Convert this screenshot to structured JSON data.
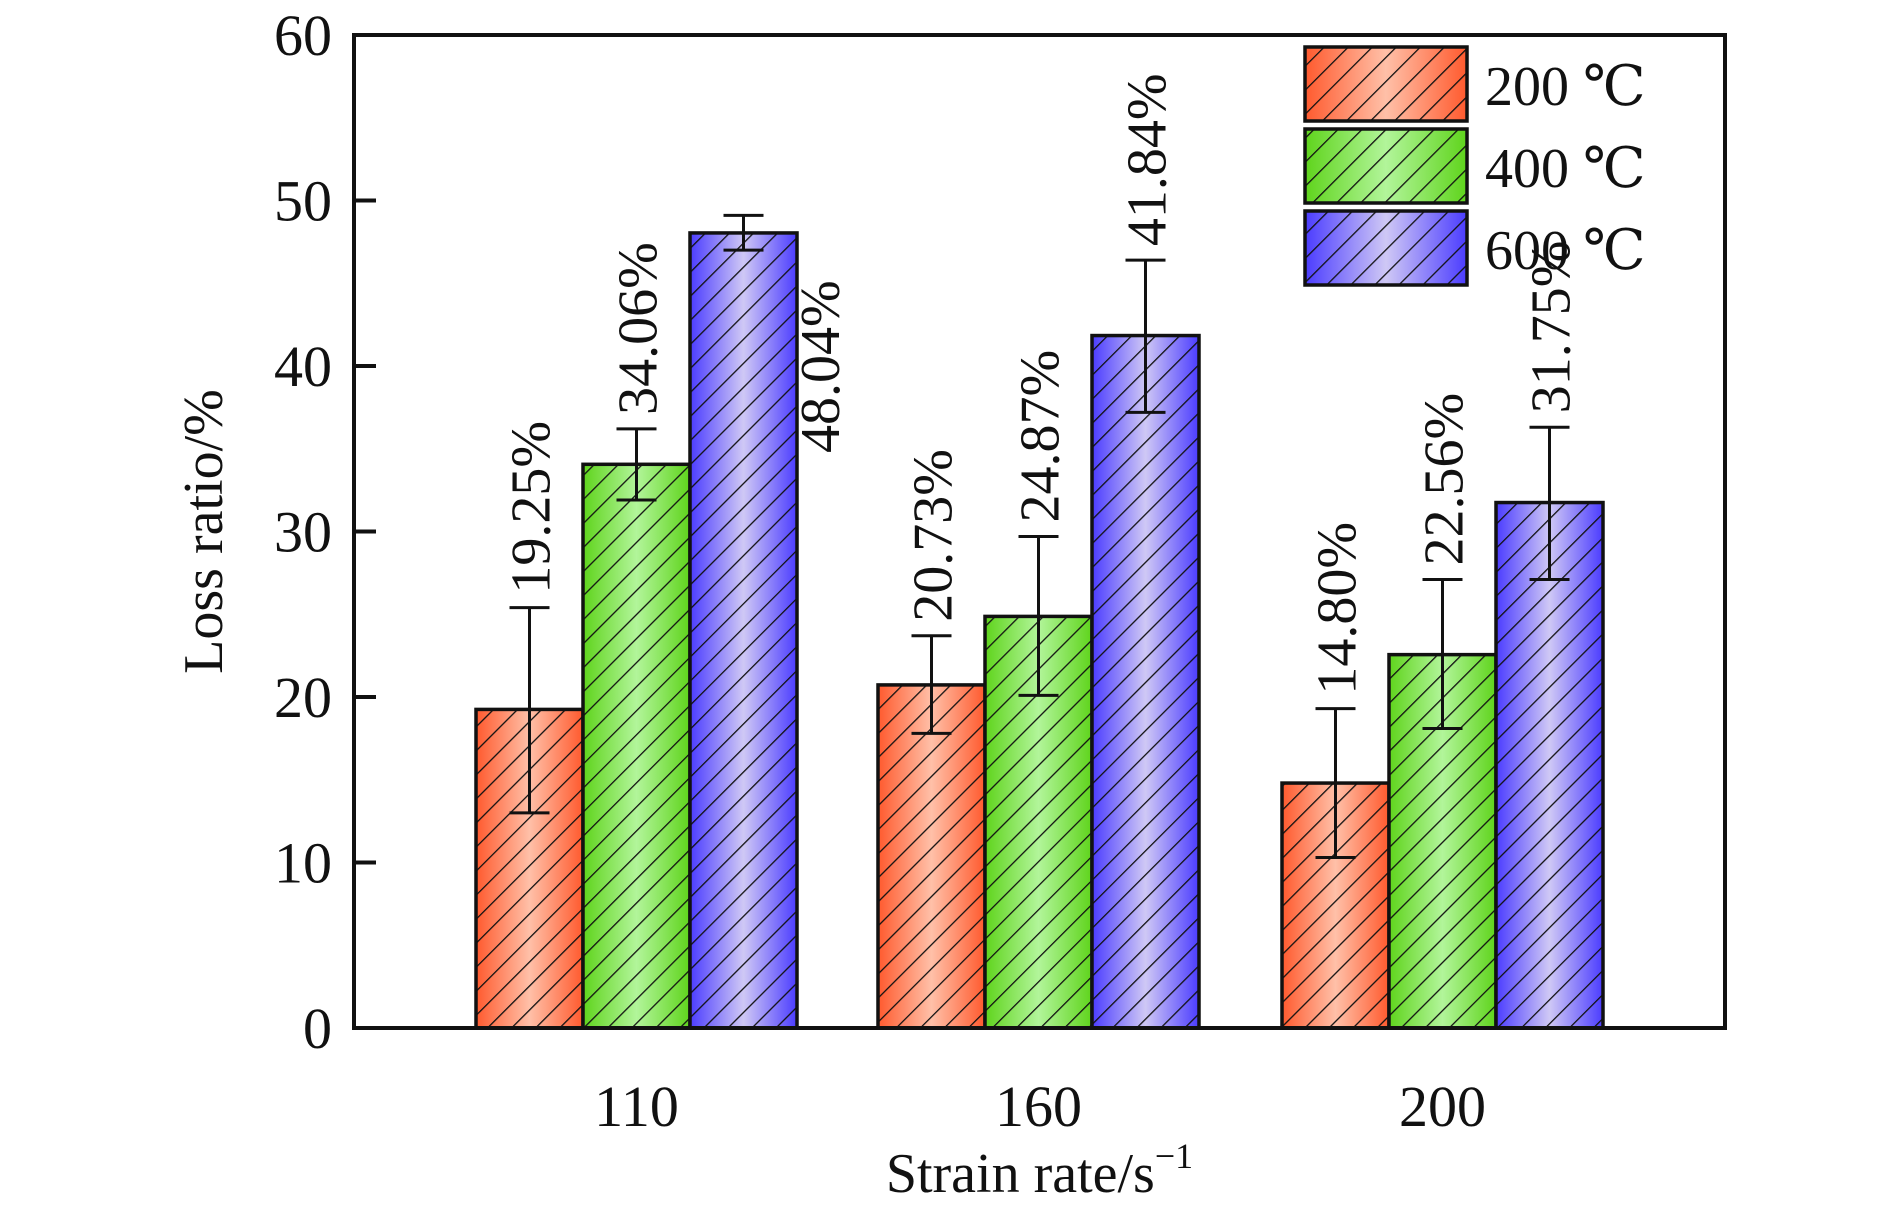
{
  "chart_data": {
    "type": "bar",
    "title": "",
    "xlabel": "Strain rate/s",
    "xlabel_superscript": "−1",
    "ylabel": "Loss ratio/%",
    "ylim": [
      0,
      60
    ],
    "yticks": [
      0,
      10,
      20,
      30,
      40,
      50,
      60
    ],
    "categories": [
      "110",
      "160",
      "200"
    ],
    "legend_position": "top-right",
    "grid": false,
    "series": [
      {
        "name": "200 ℃",
        "color": "#ff5a2e",
        "highlight": "#ffc0a8",
        "values": [
          19.25,
          20.73,
          14.8
        ],
        "labels": [
          "19.25%",
          "20.73%",
          "14.80%"
        ],
        "error_low": [
          13.0,
          17.8,
          10.3
        ],
        "error_high": [
          25.4,
          23.7,
          19.3
        ]
      },
      {
        "name": "400 ℃",
        "color": "#5fd41c",
        "highlight": "#b2f59a",
        "values": [
          34.06,
          24.87,
          22.56
        ],
        "labels": [
          "34.06%",
          "24.87%",
          "22.56%"
        ],
        "error_low": [
          31.9,
          20.1,
          18.1
        ],
        "error_high": [
          36.2,
          29.7,
          27.1
        ]
      },
      {
        "name": "600 ℃",
        "color": "#4b3cff",
        "highlight": "#cfc8f5",
        "values": [
          48.04,
          41.84,
          31.75
        ],
        "labels": [
          "48.04%",
          "41.84%",
          "31.75%"
        ],
        "error_low": [
          47.0,
          37.2,
          27.1
        ],
        "error_high": [
          49.1,
          46.4,
          36.3
        ]
      }
    ]
  }
}
